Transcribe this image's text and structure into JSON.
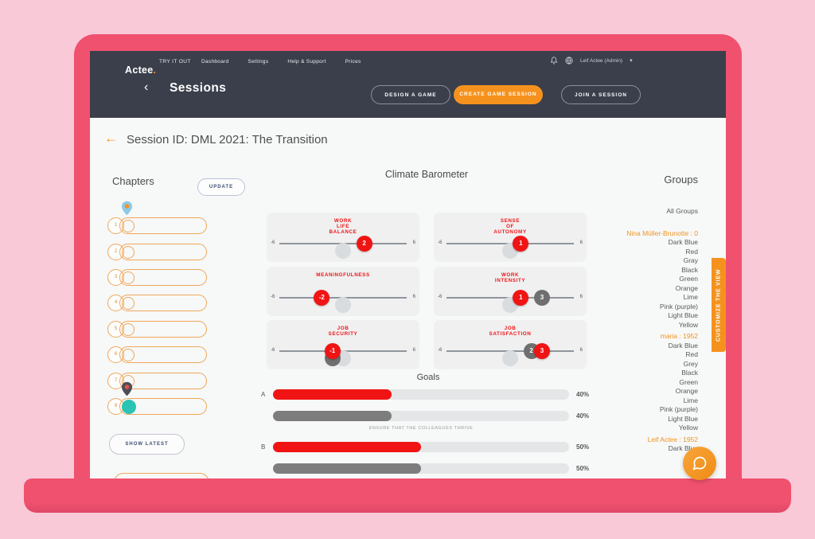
{
  "colors": {
    "accent_orange": "#F5921E",
    "red": "#F01414",
    "teal": "#2BC3B4",
    "frame_pink": "#F0516F",
    "nav_dark": "#3A3F4B"
  },
  "navbar": {
    "logo": "Actee",
    "logo_dot": ".",
    "try_it_out": "TRY IT OUT",
    "links": [
      {
        "label": "Dashboard"
      },
      {
        "label": "Settings"
      },
      {
        "label": "Help & Support"
      },
      {
        "label": "Prices"
      }
    ],
    "user": "Leif Actee (Admin)",
    "caret": "▾"
  },
  "subheader": {
    "back": "‹",
    "title": "Sessions",
    "buttons": [
      {
        "label": "DESIGN A GAME",
        "style": "outline"
      },
      {
        "label": "CREATE GAME SESSION",
        "style": "solid"
      },
      {
        "label": "JOIN A SESSION",
        "style": "outline"
      }
    ]
  },
  "session": {
    "back_arrow": "←",
    "title": "Session ID: DML 2021: The Transition"
  },
  "chapters": {
    "heading": "Chapters",
    "update_label": "UPDATE",
    "show_latest_label": "SHOW LATEST",
    "items": [
      {
        "number": "1",
        "pin": "blue",
        "filled": false
      },
      {
        "number": "2",
        "pin": null,
        "filled": false
      },
      {
        "number": "3",
        "pin": null,
        "filled": false
      },
      {
        "number": "4",
        "pin": null,
        "filled": false
      },
      {
        "number": "5",
        "pin": null,
        "filled": false
      },
      {
        "number": "6",
        "pin": null,
        "filled": false
      },
      {
        "number": "7",
        "pin": null,
        "filled": false
      },
      {
        "number": "8",
        "pin": "dark",
        "filled": true
      }
    ]
  },
  "barometer": {
    "title": "Climate Barometer",
    "scale_min": "-6",
    "scale_max": "6",
    "cards": [
      {
        "title_lines": [
          "WORK",
          "LIFE",
          "BALANCE"
        ],
        "markers": [
          {
            "value": 0,
            "label": "",
            "type": "light",
            "below": true
          },
          {
            "value": 2,
            "label": "2",
            "type": "red",
            "below": false
          }
        ]
      },
      {
        "title_lines": [
          "SENSE",
          "OF",
          "AUTONOMY"
        ],
        "markers": [
          {
            "value": 0,
            "label": "",
            "type": "light",
            "below": true
          },
          {
            "value": 1,
            "label": "1",
            "type": "red",
            "below": false
          }
        ]
      },
      {
        "title_lines": [
          "MEANINGFULNESS"
        ],
        "markers": [
          {
            "value": 0,
            "label": "",
            "type": "light",
            "below": true
          },
          {
            "value": -2,
            "label": "-2",
            "type": "red",
            "below": false
          }
        ]
      },
      {
        "title_lines": [
          "WORK",
          "INTENSITY"
        ],
        "markers": [
          {
            "value": 0,
            "label": "",
            "type": "light",
            "below": true
          },
          {
            "value": 3,
            "label": "3",
            "type": "dark",
            "below": false
          },
          {
            "value": 1,
            "label": "1",
            "type": "red",
            "below": false
          }
        ]
      },
      {
        "title_lines": [
          "JOB",
          "SECURITY"
        ],
        "markers": [
          {
            "value": 0,
            "label": "",
            "type": "light",
            "below": true
          },
          {
            "value": -1,
            "label": "",
            "type": "dark",
            "below": true
          },
          {
            "value": -1,
            "label": "-1",
            "type": "red",
            "below": false
          }
        ]
      },
      {
        "title_lines": [
          "JOB",
          "SATISFACTION"
        ],
        "markers": [
          {
            "value": 0,
            "label": "",
            "type": "light",
            "below": true
          },
          {
            "value": 2,
            "label": "2",
            "type": "dark",
            "below": false
          },
          {
            "value": 3,
            "label": "3",
            "type": "red",
            "below": false
          }
        ]
      }
    ]
  },
  "goals": {
    "title": "Goals",
    "rows": [
      {
        "letter": "A",
        "bars": [
          {
            "color": "red",
            "percent": 40,
            "label": "40%"
          },
          {
            "color": "gray",
            "percent": 40,
            "label": "40%"
          }
        ],
        "caption": "ENSURE THAT THE COLLEAGUES THRIVE"
      },
      {
        "letter": "B",
        "bars": [
          {
            "color": "red",
            "percent": 50,
            "label": "50%"
          },
          {
            "color": "gray",
            "percent": 50,
            "label": "50%"
          }
        ],
        "caption": ""
      }
    ]
  },
  "groups": {
    "heading": "Groups",
    "items": [
      {
        "label": "All Groups",
        "type": "all"
      },
      {
        "label": "Nina Müller-Brunotte : 0",
        "type": "member"
      },
      {
        "label": "Dark Blue",
        "type": "color"
      },
      {
        "label": "Red",
        "type": "color"
      },
      {
        "label": "Gray",
        "type": "color"
      },
      {
        "label": "Black",
        "type": "color"
      },
      {
        "label": "Green",
        "type": "color"
      },
      {
        "label": "Orange",
        "type": "color"
      },
      {
        "label": "Lime",
        "type": "color"
      },
      {
        "label": "Pink (purple)",
        "type": "color"
      },
      {
        "label": "Light Blue",
        "type": "color"
      },
      {
        "label": "Yellow",
        "type": "color"
      },
      {
        "label": "maria : 1952",
        "type": "member"
      },
      {
        "label": "Dark Blue",
        "type": "color"
      },
      {
        "label": "Red",
        "type": "color"
      },
      {
        "label": "Grey",
        "type": "color"
      },
      {
        "label": "Black",
        "type": "color"
      },
      {
        "label": "Green",
        "type": "color"
      },
      {
        "label": "Orange",
        "type": "color"
      },
      {
        "label": "Lime",
        "type": "color"
      },
      {
        "label": "Pink (purple)",
        "type": "color"
      },
      {
        "label": "Light Blue",
        "type": "color"
      },
      {
        "label": "Yellow",
        "type": "color"
      },
      {
        "label": "Leif Actee : 1952",
        "type": "member"
      },
      {
        "label": "Dark Blue",
        "type": "color"
      },
      {
        "label": "Red",
        "type": "color"
      },
      {
        "label": "Grey",
        "type": "color"
      }
    ]
  },
  "customize_tab": {
    "label": "CUSTOMIZE THE VIEW"
  }
}
